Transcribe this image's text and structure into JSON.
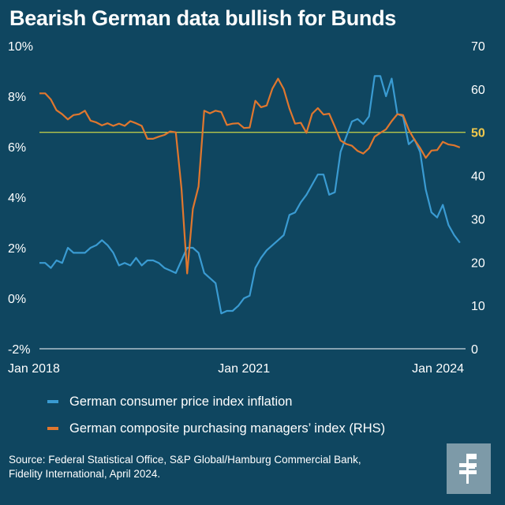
{
  "title": "Bearish German data bullish for Bunds",
  "colors": {
    "background": "#0f4660",
    "cpi": "#3a9bd2",
    "pmi": "#e0772e",
    "ref_line": "#b8c64a",
    "ref_label": "#f2c94c",
    "axis": "#ffffff"
  },
  "legend": {
    "cpi": "German consumer price index inflation",
    "pmi": "German composite purchasing managers’ index (RHS)"
  },
  "source": {
    "line1": "Source: Federal Statistical Office, S&P Global/Hamburg Commercial Bank,",
    "line2": "Fidelity International, April 2024."
  },
  "logo": {
    "icon": "fidelity-f-icon"
  },
  "chart_data": {
    "type": "line",
    "title": "Bearish German data bullish for Bunds",
    "x_labels": [
      {
        "label": "Jan 2018",
        "t": 0
      },
      {
        "label": "Jan 2021",
        "t": 36
      },
      {
        "label": "Jan 2024",
        "t": 72
      }
    ],
    "x_range": [
      0,
      75
    ],
    "y_left": {
      "range": [
        -2,
        10
      ],
      "ticks": [
        -2,
        0,
        2,
        4,
        6,
        8,
        10
      ],
      "tick_labels": [
        "-2%",
        "0%",
        "2%",
        "4%",
        "6%",
        "8%",
        "10%"
      ]
    },
    "y_right": {
      "range": [
        0,
        70
      ],
      "ticks": [
        0,
        10,
        20,
        30,
        40,
        50,
        60,
        70
      ],
      "tick_labels": [
        "0",
        "10",
        "20",
        "30",
        "40",
        "50",
        "60",
        "70"
      ],
      "highlight_tick": 50
    },
    "reference_line": {
      "axis": "right",
      "value": 50,
      "label": "50"
    },
    "series": [
      {
        "name": "German consumer price index inflation",
        "axis": "left",
        "values": [
          1.4,
          1.4,
          1.2,
          1.5,
          1.4,
          2.0,
          1.8,
          1.8,
          1.8,
          2.0,
          2.1,
          2.3,
          2.1,
          1.8,
          1.3,
          1.4,
          1.3,
          1.6,
          1.3,
          1.5,
          1.5,
          1.4,
          1.2,
          1.1,
          1.0,
          1.5,
          2.0,
          2.0,
          1.8,
          1.0,
          0.8,
          0.6,
          -0.6,
          -0.5,
          -0.5,
          -0.3,
          0.0,
          0.1,
          1.2,
          1.6,
          1.9,
          2.1,
          2.3,
          2.5,
          3.3,
          3.4,
          3.8,
          4.1,
          4.5,
          4.9,
          4.9,
          4.1,
          4.2,
          5.8,
          6.4,
          7.0,
          7.1,
          6.9,
          7.2,
          8.8,
          8.8,
          8.0,
          8.7,
          7.3,
          7.2,
          6.1,
          6.3,
          5.8,
          4.3,
          3.4,
          3.2,
          3.7,
          2.9,
          2.5,
          2.2
        ],
        "color": "#3a9bd2"
      },
      {
        "name": "German composite purchasing managers’ index (RHS)",
        "axis": "right",
        "values": [
          59.0,
          59.0,
          57.6,
          55.1,
          54.2,
          53.0,
          54.0,
          54.2,
          55.0,
          52.7,
          52.3,
          51.6,
          52.1,
          51.5,
          52.0,
          51.5,
          52.6,
          52.1,
          51.5,
          48.5,
          48.5,
          49.0,
          49.4,
          50.2,
          50.0,
          37.0,
          17.4,
          32.3,
          37.5,
          55.0,
          54.4,
          55.0,
          54.7,
          51.7,
          52.0,
          52.1,
          51.0,
          51.1,
          57.3,
          55.8,
          56.2,
          60.1,
          62.4,
          60.0,
          55.5,
          52.0,
          52.2,
          49.9,
          54.3,
          55.6,
          54.1,
          54.3,
          51.3,
          48.1,
          47.3,
          46.9,
          45.7,
          45.1,
          46.3,
          49.0,
          49.9,
          50.7,
          52.6,
          54.2,
          54.0,
          50.6,
          48.3,
          46.4,
          44.1,
          45.8,
          45.9,
          47.8,
          47.2,
          47.0,
          46.5
        ]
      }
    ]
  }
}
